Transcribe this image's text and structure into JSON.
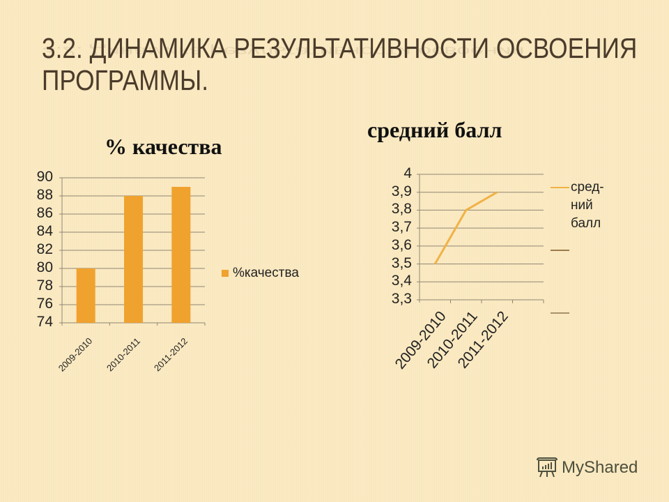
{
  "slide": {
    "title_line1": "3.2. Динамика результативности освоения",
    "title_line2": "программы.",
    "background_color": "#fbe9bf",
    "accent_color": "#f0a22e"
  },
  "watermark": {
    "text": "MyShared",
    "icon": "presentation-board-icon"
  },
  "chart_data": [
    {
      "type": "bar",
      "title": "% качества",
      "categories": [
        "2009-2010",
        "2010-2011",
        "2011-2012"
      ],
      "series": [
        {
          "name": "%качества",
          "values": [
            80,
            88,
            89
          ],
          "color": "#f0a22e"
        }
      ],
      "ylim": [
        74,
        90
      ],
      "yticks": [
        "74",
        "76",
        "78",
        "80",
        "82",
        "84",
        "86",
        "88",
        "90"
      ],
      "xlabel": "",
      "ylabel": "",
      "grid": true,
      "legend_position": "right"
    },
    {
      "type": "line",
      "title": "средний балл",
      "categories": [
        "2009-2010",
        "2010-2011",
        "2011-2012"
      ],
      "series": [
        {
          "name": "сред-ний балл",
          "values": [
            3.5,
            3.8,
            3.9
          ],
          "color": "#f0b246"
        },
        {
          "name": "",
          "values": [],
          "color": "#9c7a4a"
        },
        {
          "name": "",
          "values": [],
          "color": "#a8916a"
        }
      ],
      "ylim": [
        3.3,
        4.0
      ],
      "yticks": [
        "3,3",
        "3,4",
        "3,5",
        "3,6",
        "3,7",
        "3,8",
        "3,9",
        "4"
      ],
      "xlabel": "",
      "ylabel": "",
      "grid": true,
      "legend_position": "right",
      "legend_lines": [
        "сред-",
        "ний",
        "балл"
      ]
    }
  ]
}
